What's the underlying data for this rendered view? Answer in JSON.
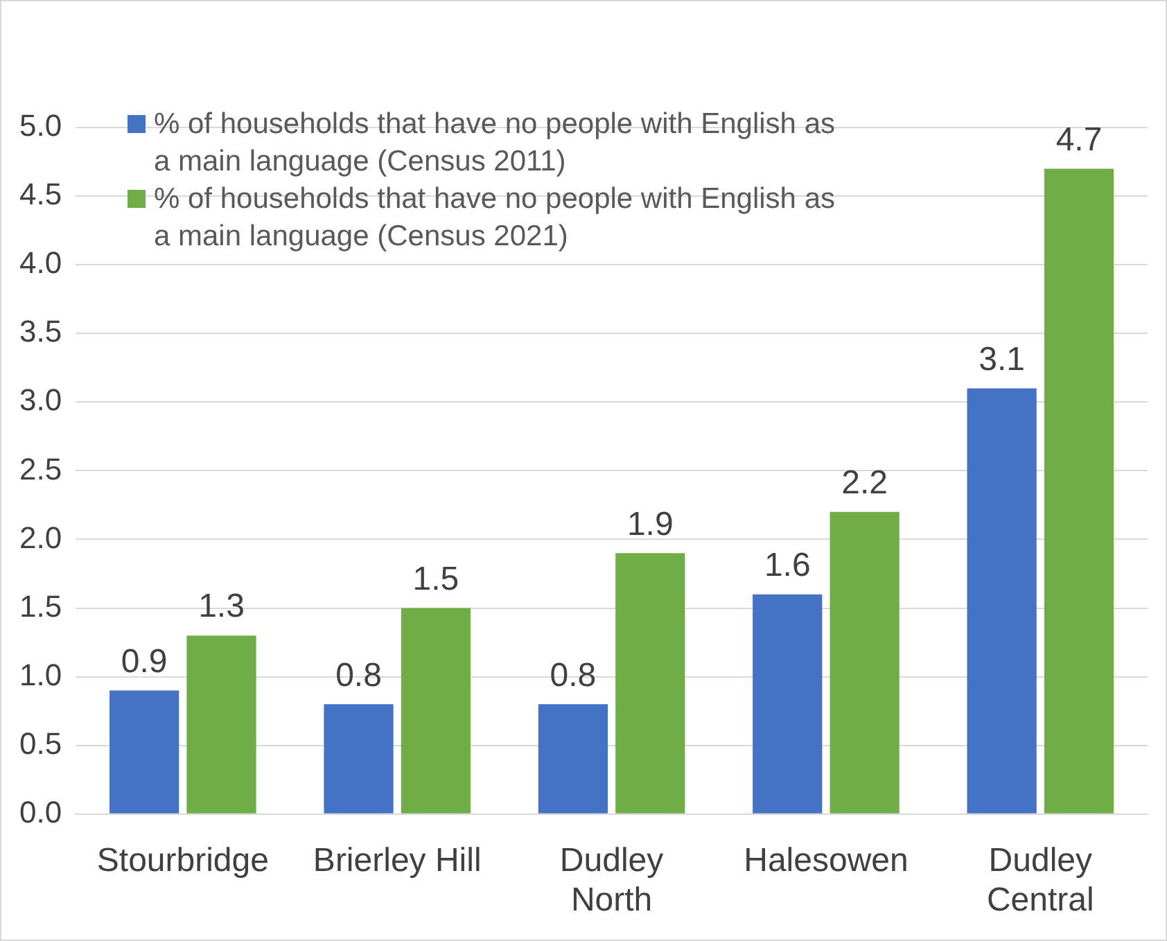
{
  "chart_data": {
    "type": "bar",
    "categories": [
      "Stourbridge",
      "Brierley Hill",
      "Dudley North",
      "Halesowen",
      "Dudley Central"
    ],
    "series": [
      {
        "name": "% of households that have no people with English as a main language (Census 2011)",
        "color": "#4472c4",
        "values": [
          0.9,
          0.8,
          0.8,
          1.6,
          3.1
        ]
      },
      {
        "name": "% of households that have no people with English as a main language (Census 2021)",
        "color": "#70ad47",
        "values": [
          1.3,
          1.5,
          1.9,
          2.2,
          4.7
        ]
      }
    ],
    "ylim": [
      0,
      5
    ],
    "yticks": [
      {
        "value": 0,
        "label": "0.0"
      },
      0.5,
      {
        "value": 1,
        "label": "1.0"
      },
      1.5,
      {
        "value": 2,
        "label": "2.0"
      },
      2.5,
      {
        "value": 3,
        "label": "3.0"
      },
      3.5,
      {
        "value": 4,
        "label": "4.0"
      },
      4.5,
      {
        "value": 5,
        "label": "5.0"
      }
    ],
    "grid": "y",
    "legend": "top left",
    "data_labels": true
  }
}
